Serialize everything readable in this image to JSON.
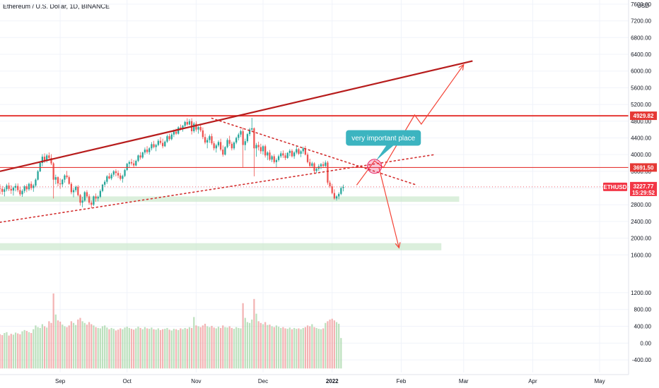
{
  "symbol": {
    "title": "Ethereum / U.S. Dollar, 1D, BINANCE"
  },
  "chart_data": {
    "type": "candlestick",
    "title": "Ethereum / U.S. Dollar, 1D, BINANCE",
    "y_axis": {
      "unit": "USD",
      "ticks": [
        "7600.00",
        "7200.00",
        "6800.00",
        "6400.00",
        "6000.00",
        "5600.00",
        "5200.00",
        "4800.00",
        "4400.00",
        "4000.00",
        "3600.00",
        "3200.00",
        "2800.00",
        "2400.00",
        "2000.00",
        "1600.00"
      ],
      "range": [
        1200,
        7700
      ]
    },
    "volume_axis": {
      "ticks": [
        "1200.00",
        "800.00",
        "400.00",
        "0.00",
        "-400.00"
      ],
      "range": [
        -700,
        1450
      ]
    },
    "x_axis": {
      "labels": [
        "Sep",
        "Oct",
        "Nov",
        "Dec",
        "2022",
        "Feb",
        "Mar",
        "Apr",
        "May"
      ],
      "label_dates": [
        "2021-09-01",
        "2021-10-01",
        "2021-11-01",
        "2021-12-01",
        "2022-01-01",
        "2022-02-01",
        "2022-03-01",
        "2022-04-01",
        "2022-05-01"
      ],
      "range": [
        "2021-08-05",
        "2022-05-14"
      ]
    },
    "ohlc_start_date": "2021-08-05",
    "ohlc": [
      [
        3190,
        3290,
        3050,
        3180
      ],
      [
        3180,
        3250,
        3040,
        3110
      ],
      [
        3110,
        3220,
        3000,
        3170
      ],
      [
        3170,
        3300,
        3120,
        3260
      ],
      [
        3260,
        3330,
        3130,
        3180
      ],
      [
        3180,
        3270,
        3060,
        3140
      ],
      [
        3140,
        3240,
        3020,
        3210
      ],
      [
        3210,
        3310,
        3120,
        3250
      ],
      [
        3250,
        3310,
        3100,
        3150
      ],
      [
        3150,
        3230,
        3010,
        3050
      ],
      [
        3050,
        3170,
        2990,
        3130
      ],
      [
        3130,
        3270,
        3080,
        3240
      ],
      [
        3240,
        3290,
        3100,
        3170
      ],
      [
        3170,
        3330,
        3130,
        3300
      ],
      [
        3300,
        3360,
        3150,
        3200
      ],
      [
        3200,
        3300,
        3110,
        3260
      ],
      [
        3260,
        3430,
        3220,
        3400
      ],
      [
        3400,
        3630,
        3380,
        3600
      ],
      [
        3600,
        3820,
        3580,
        3800
      ],
      [
        3800,
        4010,
        3720,
        3950
      ],
      [
        3950,
        4030,
        3800,
        3850
      ],
      [
        3850,
        4020,
        3810,
        3980
      ],
      [
        3980,
        4050,
        3870,
        3920
      ],
      [
        3920,
        4010,
        3750,
        3790
      ],
      [
        3790,
        3820,
        2950,
        3400
      ],
      [
        3400,
        3520,
        3290,
        3460
      ],
      [
        3460,
        3480,
        3240,
        3310
      ],
      [
        3310,
        3430,
        3180,
        3290
      ],
      [
        3290,
        3420,
        3220,
        3400
      ],
      [
        3400,
        3530,
        3330,
        3500
      ],
      [
        3500,
        3610,
        3420,
        3460
      ],
      [
        3460,
        3500,
        3280,
        3300
      ],
      [
        3300,
        3340,
        3050,
        3100
      ],
      [
        3100,
        3200,
        2980,
        3150
      ],
      [
        3150,
        3260,
        3100,
        3230
      ],
      [
        3230,
        3270,
        3000,
        3030
      ],
      [
        3030,
        3060,
        2780,
        2850
      ],
      [
        2850,
        2990,
        2740,
        2900
      ],
      [
        2900,
        3130,
        2870,
        3100
      ],
      [
        3100,
        3150,
        2960,
        3000
      ],
      [
        3000,
        3050,
        2800,
        2850
      ],
      [
        2850,
        2900,
        2720,
        2800
      ],
      [
        2800,
        3020,
        2770,
        3000
      ],
      [
        3000,
        3070,
        2870,
        2950
      ],
      [
        2950,
        3020,
        2880,
        2990
      ],
      [
        2990,
        3170,
        2960,
        3130
      ],
      [
        3130,
        3300,
        3100,
        3280
      ],
      [
        3280,
        3390,
        3230,
        3350
      ],
      [
        3350,
        3510,
        3300,
        3480
      ],
      [
        3480,
        3560,
        3410,
        3430
      ],
      [
        3430,
        3560,
        3390,
        3520
      ],
      [
        3520,
        3630,
        3470,
        3600
      ],
      [
        3600,
        3650,
        3480,
        3560
      ],
      [
        3560,
        3620,
        3440,
        3500
      ],
      [
        3500,
        3560,
        3380,
        3420
      ],
      [
        3420,
        3520,
        3330,
        3490
      ],
      [
        3490,
        3660,
        3460,
        3630
      ],
      [
        3630,
        3800,
        3610,
        3780
      ],
      [
        3780,
        3860,
        3700,
        3820
      ],
      [
        3820,
        3900,
        3740,
        3790
      ],
      [
        3790,
        3870,
        3690,
        3740
      ],
      [
        3740,
        3880,
        3720,
        3850
      ],
      [
        3850,
        4000,
        3820,
        3980
      ],
      [
        3980,
        4060,
        3880,
        3930
      ],
      [
        3930,
        4070,
        3900,
        4050
      ],
      [
        4050,
        4170,
        4000,
        4120
      ],
      [
        4120,
        4200,
        4020,
        4060
      ],
      [
        4060,
        4180,
        4000,
        4150
      ],
      [
        4150,
        4300,
        4100,
        4250
      ],
      [
        4250,
        4330,
        4150,
        4180
      ],
      [
        4180,
        4260,
        4080,
        4230
      ],
      [
        4230,
        4370,
        4200,
        4330
      ],
      [
        4330,
        4420,
        4240,
        4280
      ],
      [
        4280,
        4380,
        4150,
        4200
      ],
      [
        4200,
        4340,
        4180,
        4310
      ],
      [
        4310,
        4480,
        4280,
        4440
      ],
      [
        4440,
        4500,
        4330,
        4370
      ],
      [
        4370,
        4520,
        4340,
        4480
      ],
      [
        4480,
        4600,
        4420,
        4550
      ],
      [
        4550,
        4620,
        4470,
        4500
      ],
      [
        4500,
        4680,
        4480,
        4650
      ],
      [
        4650,
        4720,
        4580,
        4610
      ],
      [
        4610,
        4710,
        4550,
        4690
      ],
      [
        4690,
        4810,
        4650,
        4780
      ],
      [
        4780,
        4870,
        4690,
        4720
      ],
      [
        4720,
        4850,
        4700,
        4800
      ],
      [
        4800,
        4870,
        4480,
        4560
      ],
      [
        4560,
        4780,
        4520,
        4740
      ],
      [
        4740,
        4800,
        4550,
        4600
      ],
      [
        4600,
        4680,
        4500,
        4660
      ],
      [
        4660,
        4740,
        4540,
        4580
      ],
      [
        4580,
        4650,
        4370,
        4420
      ],
      [
        4420,
        4500,
        4250,
        4290
      ],
      [
        4290,
        4400,
        4150,
        4350
      ],
      [
        4350,
        4480,
        4280,
        4440
      ],
      [
        4440,
        4500,
        4230,
        4270
      ],
      [
        4270,
        4320,
        4100,
        4150
      ],
      [
        4150,
        4260,
        4050,
        4220
      ],
      [
        4220,
        4340,
        4180,
        4300
      ],
      [
        4300,
        4380,
        4080,
        4120
      ],
      [
        4120,
        4220,
        3950,
        4000
      ],
      [
        4000,
        4200,
        3980,
        4180
      ],
      [
        4180,
        4390,
        4150,
        4350
      ],
      [
        4350,
        4450,
        4210,
        4260
      ],
      [
        4260,
        4310,
        4100,
        4150
      ],
      [
        4150,
        4320,
        4110,
        4290
      ],
      [
        4290,
        4430,
        4250,
        4400
      ],
      [
        4400,
        4520,
        4340,
        4480
      ],
      [
        4480,
        4600,
        4420,
        4560
      ],
      [
        4560,
        4650,
        3700,
        4230
      ],
      [
        4230,
        4380,
        4100,
        4320
      ],
      [
        4320,
        4520,
        4280,
        4490
      ],
      [
        4490,
        4640,
        4440,
        4600
      ],
      [
        4600,
        4880,
        4550,
        4630
      ],
      [
        4630,
        4650,
        3480,
        4150
      ],
      [
        4150,
        4280,
        3950,
        4230
      ],
      [
        4230,
        4310,
        4100,
        4180
      ],
      [
        4180,
        4260,
        4020,
        4080
      ],
      [
        4080,
        4230,
        4000,
        4200
      ],
      [
        4200,
        4240,
        3930,
        3980
      ],
      [
        3980,
        4080,
        3870,
        4050
      ],
      [
        4050,
        4110,
        3850,
        3880
      ],
      [
        3880,
        3990,
        3820,
        3960
      ],
      [
        3960,
        4010,
        3780,
        3820
      ],
      [
        3820,
        3910,
        3690,
        3870
      ],
      [
        3870,
        4000,
        3830,
        3960
      ],
      [
        3960,
        4080,
        3920,
        4030
      ],
      [
        4030,
        4100,
        3920,
        3980
      ],
      [
        3980,
        4040,
        3870,
        3920
      ],
      [
        3920,
        4060,
        3900,
        4040
      ],
      [
        4040,
        4130,
        3960,
        4090
      ],
      [
        4090,
        4130,
        3930,
        3960
      ],
      [
        3960,
        4080,
        3900,
        4050
      ],
      [
        4050,
        4200,
        4010,
        4130
      ],
      [
        4130,
        4160,
        3990,
        4020
      ],
      [
        4020,
        4110,
        3940,
        4080
      ],
      [
        4080,
        4190,
        4020,
        4150
      ],
      [
        4150,
        4210,
        3980,
        4000
      ],
      [
        4000,
        4050,
        3790,
        3820
      ],
      [
        3820,
        3900,
        3680,
        3730
      ],
      [
        3730,
        3830,
        3690,
        3790
      ],
      [
        3790,
        3820,
        3560,
        3610
      ],
      [
        3610,
        3700,
        3560,
        3660
      ],
      [
        3660,
        3770,
        3610,
        3720
      ],
      [
        3720,
        3800,
        3650,
        3770
      ],
      [
        3770,
        3830,
        3680,
        3730
      ],
      [
        3730,
        3860,
        3700,
        3810
      ],
      [
        3810,
        3850,
        3280,
        3330
      ],
      [
        3330,
        3380,
        3200,
        3240
      ],
      [
        3240,
        3300,
        3050,
        3080
      ],
      [
        3080,
        3170,
        2920,
        2950
      ],
      [
        2950,
        3030,
        2900,
        3000
      ],
      [
        3000,
        3100,
        2930,
        3060
      ],
      [
        3060,
        3240,
        3030,
        3200
      ],
      [
        3200,
        3280,
        3120,
        3227
      ]
    ],
    "volume": [
      210,
      190,
      240,
      260,
      180,
      220,
      200,
      250,
      230,
      210,
      280,
      310,
      290,
      260,
      240,
      330,
      420,
      380,
      360,
      450,
      400,
      370,
      520,
      480,
      1180,
      680,
      540,
      510,
      440,
      400,
      380,
      420,
      520,
      480,
      430,
      560,
      600,
      520,
      480,
      440,
      500,
      450,
      420,
      380,
      360,
      350,
      400,
      420,
      370,
      330,
      360,
      340,
      300,
      320,
      350,
      330,
      370,
      390,
      360,
      340,
      320,
      350,
      390,
      360,
      330,
      380,
      350,
      340,
      370,
      330,
      320,
      350,
      310,
      330,
      340,
      360,
      320,
      300,
      340,
      330,
      310,
      350,
      330,
      360,
      340,
      380,
      360,
      620,
      420,
      400,
      380,
      420,
      460,
      400,
      380,
      410,
      370,
      350,
      390,
      360,
      420,
      380,
      370,
      400,
      360,
      340,
      380,
      360,
      350,
      950,
      600,
      500,
      480,
      560,
      1050,
      700,
      520,
      480,
      450,
      500,
      430,
      440,
      400,
      380,
      420,
      390,
      360,
      380,
      350,
      340,
      370,
      330,
      360,
      340,
      350,
      330,
      360,
      380,
      420,
      400,
      450,
      380,
      360,
      340,
      330,
      350,
      480,
      520,
      560,
      580,
      540,
      500,
      460,
      120
    ],
    "horizontal_lines": [
      4929.82,
      3691.5
    ],
    "price_tags": [
      {
        "label": "4929.82",
        "value": 4929.82,
        "color": "#e53935"
      },
      {
        "label": "3691.50",
        "value": 3691.5,
        "color": "#e53935"
      },
      {
        "label": "3227.77",
        "value": 3227.77,
        "color": "#f23645"
      }
    ],
    "symbol_tag": {
      "label": "ETHUSD",
      "countdown": "15:29:52"
    },
    "support_zones": [
      {
        "from": 2870,
        "to": 3000,
        "end_date": "2022-02-27"
      },
      {
        "from": 1710,
        "to": 1880,
        "end_date": "2022-02-19"
      }
    ],
    "trendlines": [
      {
        "style": "solid",
        "from": {
          "date": "2021-08-05",
          "price": 3600
        },
        "to": {
          "date": "2022-03-05",
          "price": 6240
        }
      },
      {
        "style": "dotted",
        "from": {
          "date": "2021-08-05",
          "price": 2380
        },
        "to": {
          "date": "2022-02-16",
          "price": 4000
        }
      },
      {
        "style": "dotted",
        "from": {
          "date": "2021-11-08",
          "price": 4870
        },
        "to": {
          "date": "2022-02-08",
          "price": 3270
        }
      }
    ],
    "projections": [
      {
        "direction": "up",
        "points": [
          {
            "date": "2022-01-12",
            "price": 3270
          },
          {
            "date": "2022-01-20",
            "price": 3850
          },
          {
            "date": "2022-01-24",
            "price": 3690
          },
          {
            "date": "2022-02-07",
            "price": 4950
          },
          {
            "date": "2022-02-10",
            "price": 4730
          },
          {
            "date": "2022-03-01",
            "price": 6150
          }
        ]
      },
      {
        "direction": "down",
        "points": [
          {
            "date": "2022-01-22",
            "price": 3690
          },
          {
            "date": "2022-01-31",
            "price": 1770
          }
        ]
      }
    ],
    "marker": {
      "date": "2022-01-20",
      "price": 3720
    },
    "annotation": {
      "text": "very important place",
      "date": "2022-01-24",
      "price": 4400
    }
  }
}
